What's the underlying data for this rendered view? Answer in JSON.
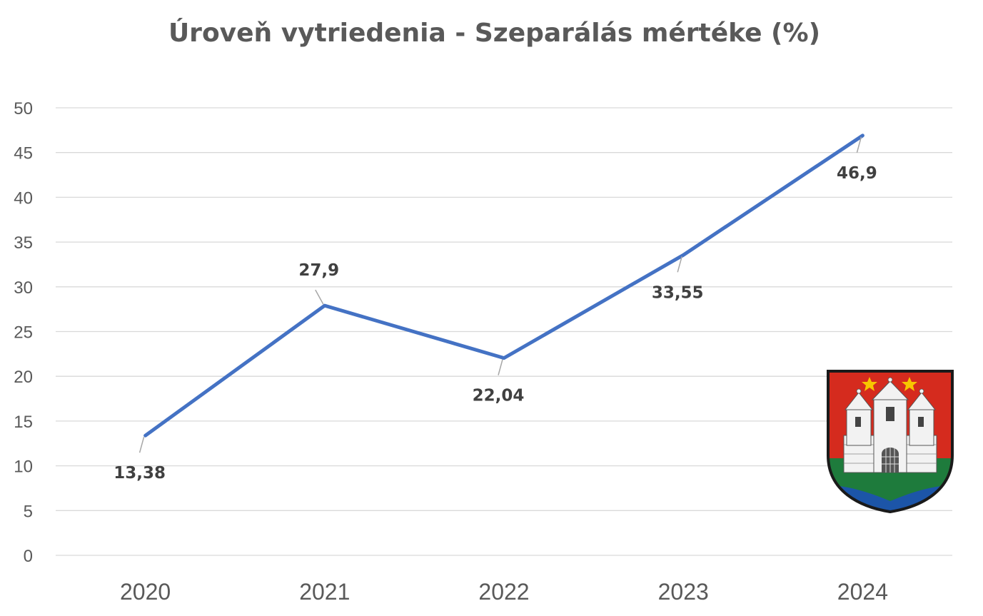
{
  "chart_data": {
    "type": "line",
    "title": "Úroveň vytriedenia - Szeparálás mértéke (%)",
    "categories": [
      "2020",
      "2021",
      "2022",
      "2023",
      "2024"
    ],
    "series": [
      {
        "values": [
          13.38,
          27.9,
          22.04,
          33.55,
          46.9
        ],
        "data_labels": [
          "13,38",
          "27,9",
          "22,04",
          "33,55",
          "46,9"
        ]
      }
    ],
    "ylim": [
      0,
      50
    ],
    "yticks": [
      0,
      5,
      10,
      15,
      20,
      25,
      30,
      35,
      40,
      45,
      50
    ],
    "grid": true,
    "legend": "none",
    "colors": {
      "line": "#4472C4",
      "grid": "#d9d9d9",
      "text": "#595959",
      "label": "#404040"
    }
  },
  "logo": {
    "name": "coat-of-arms",
    "colors": {
      "red": "#D52B1E",
      "green": "#1E7B3C",
      "blue": "#1C55A8",
      "gold": "#F7C600",
      "outline": "#1a1a1a"
    }
  }
}
